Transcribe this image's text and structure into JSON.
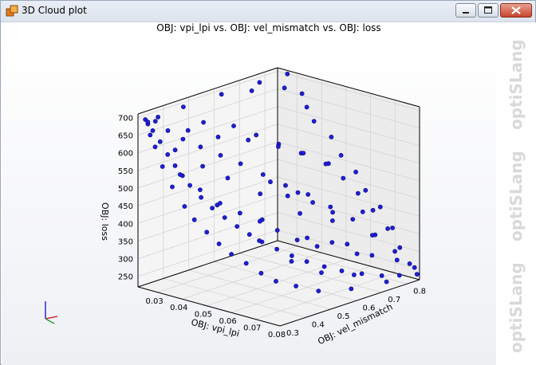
{
  "window": {
    "title": "3D Cloud plot",
    "icon": "optislang-app-icon",
    "controls": [
      "minimize-icon",
      "maximize-icon",
      "close-icon"
    ]
  },
  "watermark": [
    "optiSLang",
    "optiSLang",
    "optiSLang"
  ],
  "chart_data": {
    "type": "scatter3d",
    "title": "OBJ: vpi_lpi vs. OBJ: vel_mismatch vs. OBJ: loss",
    "xlabel": "OBJ: vpi_lpi",
    "ylabel": "OBJ: vel_mismatch",
    "zlabel": "OBJ: loss",
    "xlim": [
      0.022,
      0.08
    ],
    "ylim": [
      0.3,
      0.85
    ],
    "zlim": [
      220,
      710
    ],
    "xticks": [
      "0.03",
      "0.04",
      "0.05",
      "0.06",
      "0.07",
      "0.08"
    ],
    "yticks": [
      "0.3",
      "0.4",
      "0.5",
      "0.6",
      "0.7",
      "0.8"
    ],
    "zticks": [
      "250",
      "300",
      "350",
      "400",
      "450",
      "500",
      "550",
      "600",
      "650",
      "700"
    ],
    "grid": true,
    "point_color": "#1f1fd6",
    "series": [
      {
        "points": [
          [
            0.025,
            0.3,
            700
          ],
          [
            0.027,
            0.31,
            670
          ],
          [
            0.029,
            0.32,
            640
          ],
          [
            0.031,
            0.33,
            605
          ],
          [
            0.033,
            0.34,
            575
          ],
          [
            0.035,
            0.35,
            548
          ],
          [
            0.037,
            0.36,
            522
          ],
          [
            0.04,
            0.375,
            490
          ],
          [
            0.043,
            0.39,
            462
          ],
          [
            0.046,
            0.41,
            436
          ],
          [
            0.049,
            0.43,
            412
          ],
          [
            0.052,
            0.45,
            390
          ],
          [
            0.055,
            0.47,
            370
          ],
          [
            0.058,
            0.5,
            348
          ],
          [
            0.061,
            0.53,
            328
          ],
          [
            0.064,
            0.56,
            310
          ],
          [
            0.067,
            0.6,
            292
          ],
          [
            0.07,
            0.64,
            276
          ],
          [
            0.073,
            0.69,
            262
          ],
          [
            0.076,
            0.74,
            250
          ],
          [
            0.078,
            0.79,
            243
          ],
          [
            0.08,
            0.84,
            238
          ],
          [
            0.026,
            0.33,
            690
          ],
          [
            0.028,
            0.36,
            660
          ],
          [
            0.03,
            0.4,
            630
          ],
          [
            0.032,
            0.45,
            600
          ],
          [
            0.035,
            0.5,
            570
          ],
          [
            0.038,
            0.55,
            540
          ],
          [
            0.042,
            0.6,
            505
          ],
          [
            0.046,
            0.65,
            470
          ],
          [
            0.05,
            0.7,
            440
          ],
          [
            0.055,
            0.74,
            405
          ],
          [
            0.06,
            0.78,
            370
          ],
          [
            0.066,
            0.81,
            330
          ],
          [
            0.072,
            0.83,
            290
          ],
          [
            0.077,
            0.84,
            262
          ],
          [
            0.025,
            0.45,
            700
          ],
          [
            0.025,
            0.6,
            700
          ],
          [
            0.025,
            0.75,
            698
          ],
          [
            0.026,
            0.85,
            700
          ],
          [
            0.027,
            0.7,
            690
          ],
          [
            0.03,
            0.8,
            680
          ],
          [
            0.033,
            0.84,
            660
          ],
          [
            0.036,
            0.83,
            630
          ],
          [
            0.04,
            0.82,
            600
          ],
          [
            0.045,
            0.84,
            560
          ],
          [
            0.05,
            0.83,
            520
          ],
          [
            0.055,
            0.84,
            480
          ],
          [
            0.06,
            0.83,
            440
          ],
          [
            0.065,
            0.84,
            400
          ],
          [
            0.07,
            0.84,
            350
          ],
          [
            0.028,
            0.5,
            650
          ],
          [
            0.03,
            0.6,
            620
          ],
          [
            0.032,
            0.35,
            615
          ],
          [
            0.034,
            0.65,
            590
          ],
          [
            0.036,
            0.42,
            560
          ],
          [
            0.038,
            0.7,
            560
          ],
          [
            0.04,
            0.48,
            520
          ],
          [
            0.042,
            0.75,
            530
          ],
          [
            0.044,
            0.4,
            470
          ],
          [
            0.046,
            0.55,
            470
          ],
          [
            0.048,
            0.8,
            500
          ],
          [
            0.05,
            0.62,
            455
          ],
          [
            0.052,
            0.5,
            420
          ],
          [
            0.054,
            0.68,
            430
          ],
          [
            0.056,
            0.45,
            380
          ],
          [
            0.058,
            0.72,
            400
          ],
          [
            0.06,
            0.6,
            360
          ],
          [
            0.062,
            0.8,
            390
          ],
          [
            0.064,
            0.5,
            325
          ],
          [
            0.066,
            0.7,
            330
          ],
          [
            0.068,
            0.78,
            340
          ],
          [
            0.07,
            0.56,
            290
          ],
          [
            0.072,
            0.74,
            300
          ],
          [
            0.074,
            0.65,
            270
          ],
          [
            0.076,
            0.8,
            280
          ],
          [
            0.078,
            0.6,
            250
          ],
          [
            0.08,
            0.72,
            245
          ],
          [
            0.075,
            0.5,
            262
          ],
          [
            0.071,
            0.45,
            280
          ],
          [
            0.068,
            0.4,
            300
          ],
          [
            0.064,
            0.38,
            320
          ],
          [
            0.06,
            0.36,
            345
          ],
          [
            0.056,
            0.34,
            368
          ],
          [
            0.052,
            0.33,
            392
          ],
          [
            0.048,
            0.32,
            420
          ],
          [
            0.044,
            0.31,
            450
          ],
          [
            0.04,
            0.31,
            480
          ],
          [
            0.036,
            0.3,
            530
          ],
          [
            0.032,
            0.3,
            580
          ],
          [
            0.029,
            0.3,
            630
          ],
          [
            0.027,
            0.3,
            660
          ],
          [
            0.025,
            0.31,
            685
          ],
          [
            0.025,
            0.35,
            695
          ],
          [
            0.026,
            0.3,
            695
          ],
          [
            0.03,
            0.42,
            650
          ],
          [
            0.034,
            0.5,
            620
          ],
          [
            0.038,
            0.58,
            600
          ],
          [
            0.042,
            0.66,
            570
          ],
          [
            0.046,
            0.72,
            545
          ],
          [
            0.05,
            0.77,
            510
          ],
          [
            0.054,
            0.8,
            470
          ],
          [
            0.058,
            0.82,
            430
          ],
          [
            0.062,
            0.84,
            385
          ],
          [
            0.067,
            0.85,
            340
          ],
          [
            0.073,
            0.84,
            300
          ],
          [
            0.079,
            0.84,
            255
          ],
          [
            0.062,
            0.62,
            335
          ],
          [
            0.058,
            0.58,
            355
          ],
          [
            0.053,
            0.55,
            380
          ],
          [
            0.049,
            0.52,
            405
          ],
          [
            0.045,
            0.48,
            430
          ],
          [
            0.041,
            0.44,
            460
          ],
          [
            0.037,
            0.4,
            500
          ],
          [
            0.033,
            0.36,
            545
          ],
          [
            0.045,
            0.6,
            490
          ],
          [
            0.05,
            0.66,
            455
          ],
          [
            0.055,
            0.62,
            415
          ],
          [
            0.06,
            0.7,
            385
          ],
          [
            0.065,
            0.65,
            345
          ],
          [
            0.07,
            0.7,
            310
          ]
        ]
      }
    ]
  }
}
